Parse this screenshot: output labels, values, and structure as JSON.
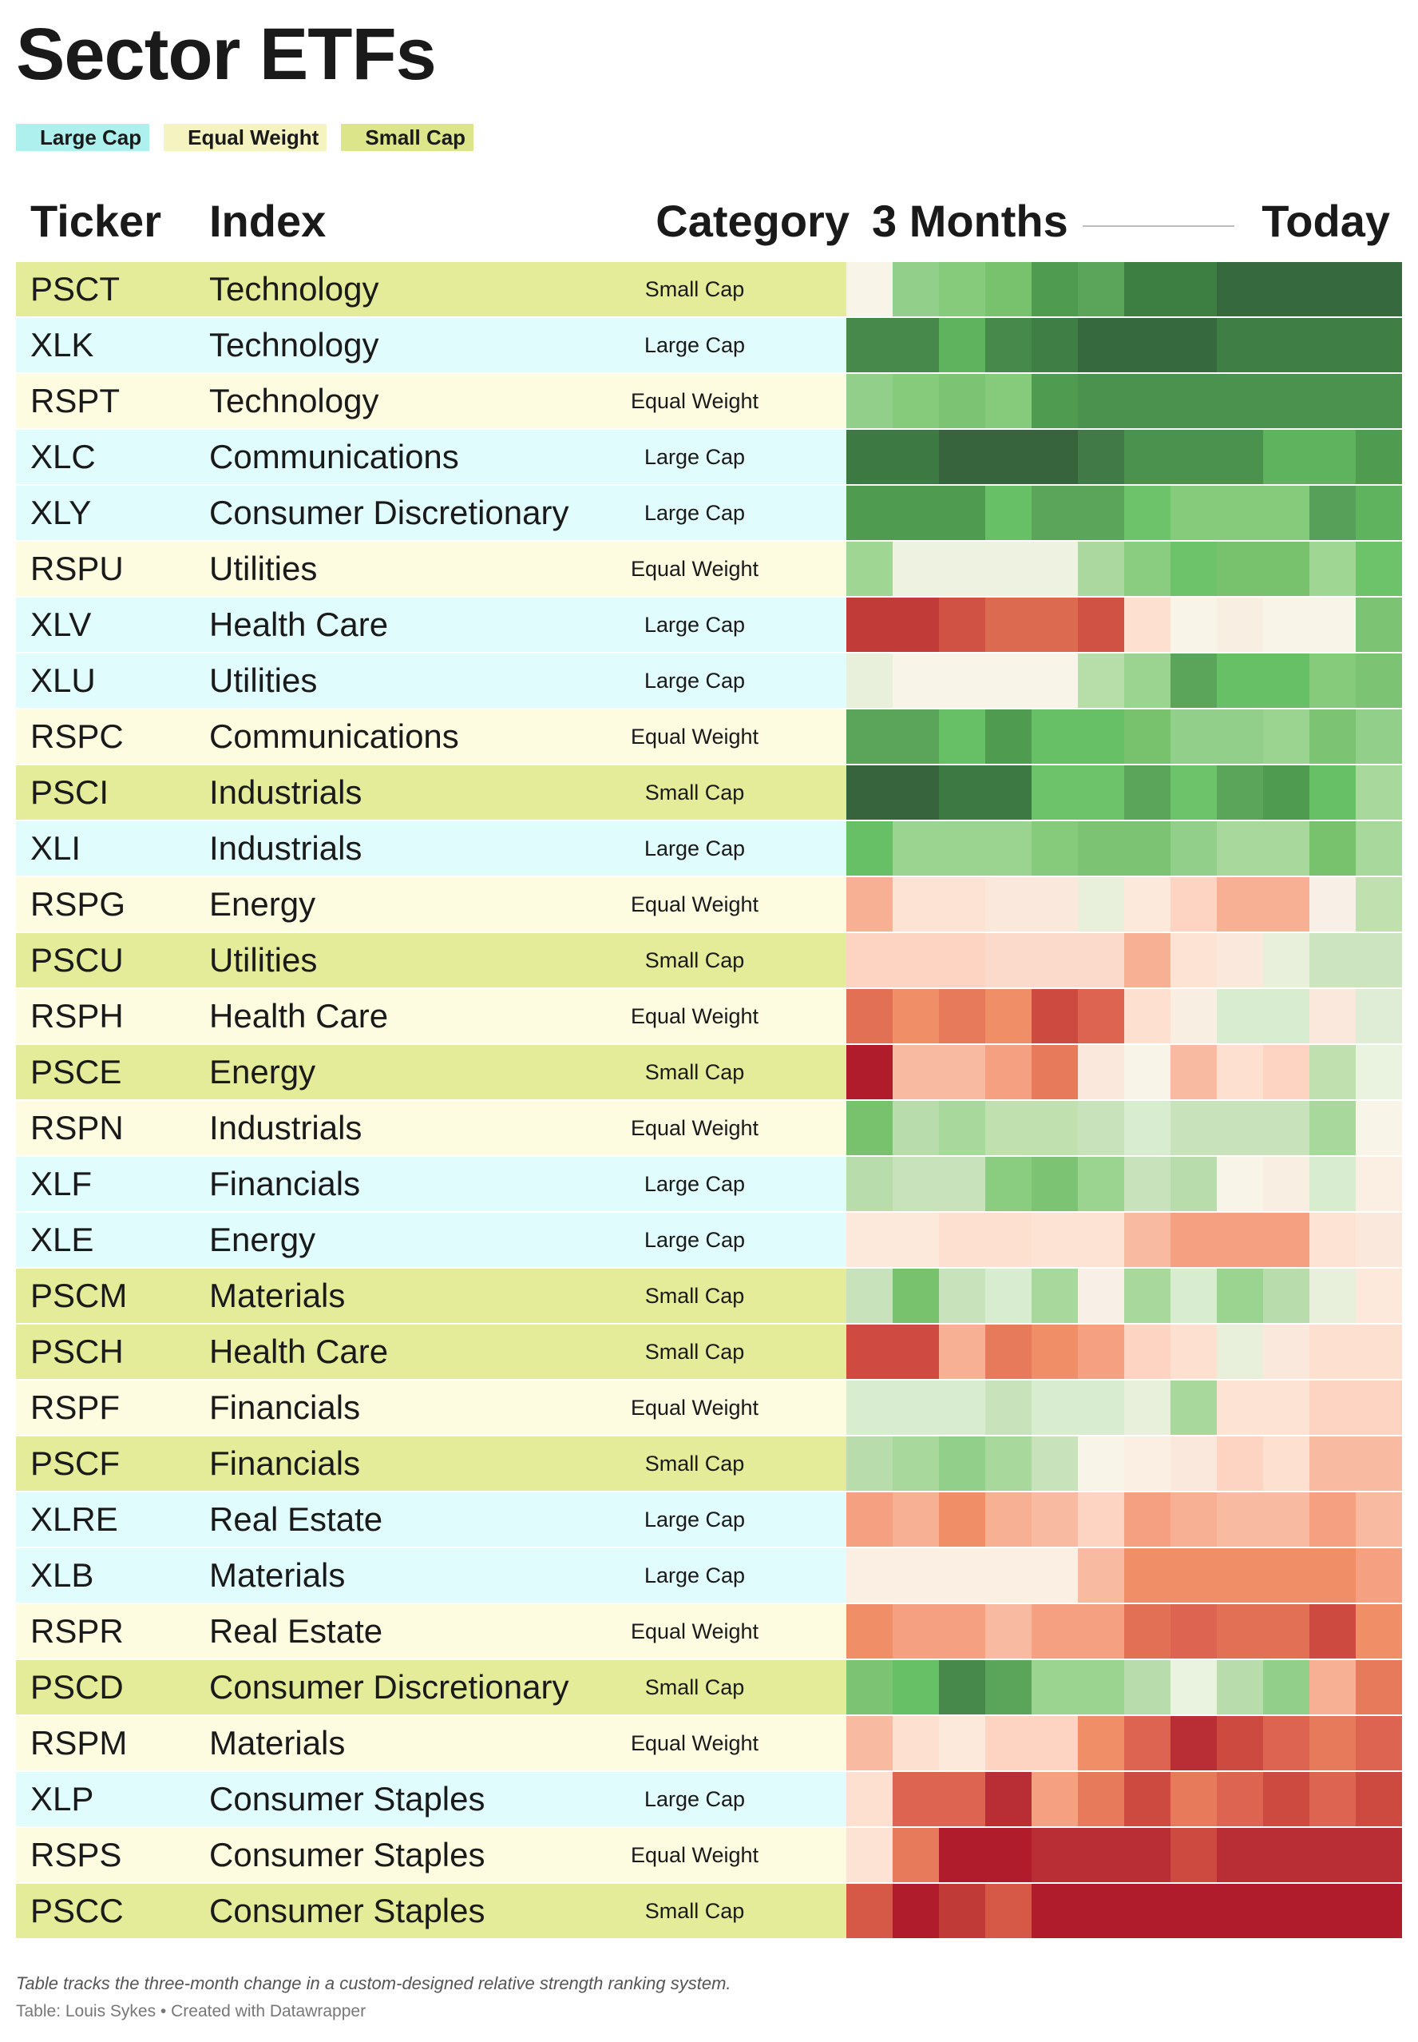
{
  "chart_data": {
    "type": "heatmap",
    "title": "Sector ETFs",
    "legend": [
      {
        "label": "Large Cap",
        "color": "#aef0ee"
      },
      {
        "label": "Equal Weight",
        "color": "#f5f4c0"
      },
      {
        "label": "Small Cap",
        "color": "#dde58a"
      }
    ],
    "row_colors": {
      "Large Cap": "#e0fcfc",
      "Equal Weight": "#fdfce1",
      "Small Cap": "#e4ec99"
    },
    "columns": [
      "Ticker",
      "Index",
      "Category",
      "3 Months",
      "Today"
    ],
    "footnote": "Table tracks the three-month change in a custom-designed relative strength ranking system.",
    "source": "Table: Louis Sykes • Created with Datawrapper",
    "rows": [
      {
        "ticker": "PSCT",
        "index": "Technology",
        "category": "Small Cap",
        "cells": [
          "#f8f5e8",
          "#92cf8a",
          "#86ca7c",
          "#78c26e",
          "#4f9c51",
          "#5aa55a",
          "#3d7f43",
          "#3d7f43",
          "#36693d",
          "#36693d",
          "#36693d",
          "#36693d"
        ]
      },
      {
        "ticker": "XLK",
        "index": "Technology",
        "category": "Large Cap",
        "cells": [
          "#46894a",
          "#46894a",
          "#5fb35f",
          "#46894a",
          "#3f7f45",
          "#37693e",
          "#37693e",
          "#37693e",
          "#3f7f45",
          "#3f7f45",
          "#3f7f45",
          "#3f7f45"
        ]
      },
      {
        "ticker": "RSPT",
        "index": "Technology",
        "category": "Equal Weight",
        "cells": [
          "#92cf8a",
          "#86ca7c",
          "#7cc473",
          "#86ca7c",
          "#4f9c51",
          "#4a924d",
          "#4a924d",
          "#4a924d",
          "#4a924d",
          "#4a924d",
          "#4a924d",
          "#4a924d"
        ]
      },
      {
        "ticker": "XLC",
        "index": "Communications",
        "category": "Large Cap",
        "cells": [
          "#3d7a43",
          "#3d7a43",
          "#37643c",
          "#37643c",
          "#37643c",
          "#417a47",
          "#4a924d",
          "#4a924d",
          "#4a924d",
          "#5fb35f",
          "#5fb35f",
          "#4f9c51"
        ]
      },
      {
        "ticker": "XLY",
        "index": "Consumer Discretionary",
        "category": "Large Cap",
        "cells": [
          "#4f9c51",
          "#4f9c51",
          "#4f9c51",
          "#67c065",
          "#5aa55a",
          "#5aa55a",
          "#6cc36a",
          "#86ca7c",
          "#86ca7c",
          "#86ca7c",
          "#56a05a",
          "#5fb35f"
        ]
      },
      {
        "ticker": "RSPU",
        "index": "Utilities",
        "category": "Equal Weight",
        "cells": [
          "#a0d694",
          "#eef2e0",
          "#eef2e0",
          "#eef2e0",
          "#eef2e0",
          "#aad89e",
          "#8acc80",
          "#6cc36a",
          "#78c26e",
          "#78c26e",
          "#a0d694",
          "#6cc36a"
        ]
      },
      {
        "ticker": "XLV",
        "index": "Health Care",
        "category": "Large Cap",
        "cells": [
          "#c13c38",
          "#c13c38",
          "#cf5244",
          "#dc6a50",
          "#dc6a50",
          "#cf5244",
          "#fde0d0",
          "#f8f5e8",
          "#f8eee2",
          "#f8f5e8",
          "#f8f5e8",
          "#7cc473"
        ]
      },
      {
        "ticker": "XLU",
        "index": "Utilities",
        "category": "Large Cap",
        "cells": [
          "#e8f0dc",
          "#f8f5e8",
          "#f8f5e8",
          "#f8f5e8",
          "#f8f5e8",
          "#b7dda9",
          "#9bd391",
          "#5aa55a",
          "#67c065",
          "#67c065",
          "#86ca7c",
          "#7cc473"
        ]
      },
      {
        "ticker": "RSPC",
        "index": "Communications",
        "category": "Equal Weight",
        "cells": [
          "#5aa55a",
          "#5aa55a",
          "#67c065",
          "#4f9c51",
          "#67c065",
          "#67c065",
          "#78c26e",
          "#92cf8a",
          "#92cf8a",
          "#9bd391",
          "#7cc473",
          "#92cf8a"
        ]
      },
      {
        "ticker": "PSCI",
        "index": "Industrials",
        "category": "Small Cap",
        "cells": [
          "#37643c",
          "#37643c",
          "#3d7a43",
          "#3d7a43",
          "#6cc36a",
          "#6cc36a",
          "#5aa55a",
          "#6cc36a",
          "#5aa55a",
          "#4f9c51",
          "#67c065",
          "#a8d89c"
        ]
      },
      {
        "ticker": "XLI",
        "index": "Industrials",
        "category": "Large Cap",
        "cells": [
          "#67c065",
          "#9bd391",
          "#9bd391",
          "#9bd391",
          "#86ca7c",
          "#7cc473",
          "#7cc473",
          "#92cf8a",
          "#a8d89c",
          "#a8d89c",
          "#78c26e",
          "#a8d89c"
        ]
      },
      {
        "ticker": "RSPG",
        "index": "Energy",
        "category": "Equal Weight",
        "cells": [
          "#f8b095",
          "#fde3d3",
          "#fde3d3",
          "#fbe8dc",
          "#fbe8dc",
          "#e8f0dc",
          "#fde8dc",
          "#fdd3c2",
          "#f8b095",
          "#f8b095",
          "#f8f0e6",
          "#c0e0b0"
        ]
      },
      {
        "ticker": "PSCU",
        "index": "Utilities",
        "category": "Small Cap",
        "cells": [
          "#fdd3c2",
          "#fdd3c2",
          "#fdd3c2",
          "#fbdacb",
          "#fbdacb",
          "#fbdacb",
          "#f8b095",
          "#fde3d3",
          "#fbe8dc",
          "#e8f0dc",
          "#cde4c0",
          "#cde4c0"
        ]
      },
      {
        "ticker": "RSPH",
        "index": "Health Care",
        "category": "Equal Weight",
        "cells": [
          "#e27055",
          "#f08e68",
          "#e67a5a",
          "#f08e68",
          "#cc4a40",
          "#dc6450",
          "#fde0d0",
          "#f8eee2",
          "#d8ecd0",
          "#d8ecd0",
          "#fbe8dc",
          "#e0edd6"
        ]
      },
      {
        "ticker": "PSCE",
        "index": "Energy",
        "category": "Small Cap",
        "cells": [
          "#b01c2c",
          "#f8bba2",
          "#f8bba2",
          "#f5a080",
          "#e67a5a",
          "#fbe8dc",
          "#f8f5e8",
          "#f8bba2",
          "#fde0d0",
          "#fdd3c2",
          "#c0e0b0",
          "#eaf2e0"
        ]
      },
      {
        "ticker": "RSPN",
        "index": "Industrials",
        "category": "Equal Weight",
        "cells": [
          "#78c26e",
          "#b8dcac",
          "#a8d89c",
          "#c0e0b0",
          "#c0e0b0",
          "#c8e2bc",
          "#d8ecd0",
          "#c8e2bc",
          "#c8e2bc",
          "#c8e2bc",
          "#a8d89c",
          "#f8f5e8"
        ]
      },
      {
        "ticker": "XLF",
        "index": "Financials",
        "category": "Large Cap",
        "cells": [
          "#b8dcac",
          "#c8e2bc",
          "#c8e2bc",
          "#8acc80",
          "#7cc473",
          "#9bd391",
          "#c8e2bc",
          "#b8dcac",
          "#f8f5e8",
          "#f8eee2",
          "#d8ecd0",
          "#fbeee2"
        ]
      },
      {
        "ticker": "XLE",
        "index": "Energy",
        "category": "Large Cap",
        "cells": [
          "#fde8dc",
          "#fde8dc",
          "#fde0d0",
          "#fde0d0",
          "#fde3d3",
          "#fde3d3",
          "#f8bba2",
          "#f5a080",
          "#f5a080",
          "#f5a080",
          "#fde3d3",
          "#fbe8dc"
        ]
      },
      {
        "ticker": "PSCM",
        "index": "Materials",
        "category": "Small Cap",
        "cells": [
          "#c8e2bc",
          "#78c26e",
          "#c8e2bc",
          "#d8ecd0",
          "#a8d89c",
          "#f8f0e6",
          "#a8d89c",
          "#d8ecd0",
          "#9bd391",
          "#b8dcac",
          "#e8f0dc",
          "#fde8dc"
        ]
      },
      {
        "ticker": "PSCH",
        "index": "Health Care",
        "category": "Small Cap",
        "cells": [
          "#cf4a40",
          "#cf4a40",
          "#f8b095",
          "#e67a5a",
          "#f08e68",
          "#f5a080",
          "#fdd3c2",
          "#fde0d0",
          "#e8f0dc",
          "#fbe8dc",
          "#fde0d0",
          "#fde0d0"
        ]
      },
      {
        "ticker": "RSPF",
        "index": "Financials",
        "category": "Equal Weight",
        "cells": [
          "#d8ecd0",
          "#d8ecd0",
          "#d8ecd0",
          "#c8e2bc",
          "#d8ecd0",
          "#d8ecd0",
          "#e8f0dc",
          "#a8d89c",
          "#fde3d3",
          "#fde3d3",
          "#fdd3c2",
          "#fdd3c2"
        ]
      },
      {
        "ticker": "PSCF",
        "index": "Financials",
        "category": "Small Cap",
        "cells": [
          "#b8dcac",
          "#a8d89c",
          "#92cf8a",
          "#a8d89c",
          "#c8e2bc",
          "#f8f5e8",
          "#fbeee2",
          "#fbe8dc",
          "#fdd3c2",
          "#fde0d0",
          "#f8bba2",
          "#f8bba2"
        ]
      },
      {
        "ticker": "XLRE",
        "index": "Real Estate",
        "category": "Large Cap",
        "cells": [
          "#f5a080",
          "#f8b095",
          "#f08e68",
          "#f8b095",
          "#f8bba2",
          "#fdd3c2",
          "#f5a080",
          "#f8b095",
          "#f8bba2",
          "#f8bba2",
          "#f5a080",
          "#f8bba2"
        ]
      },
      {
        "ticker": "XLB",
        "index": "Materials",
        "category": "Large Cap",
        "cells": [
          "#fbeee2",
          "#fbeee2",
          "#fbeee2",
          "#fbeee2",
          "#fbeee2",
          "#f8bba2",
          "#f08e68",
          "#f08e68",
          "#f08e68",
          "#f08e68",
          "#f08e68",
          "#f5a080"
        ]
      },
      {
        "ticker": "RSPR",
        "index": "Real Estate",
        "category": "Equal Weight",
        "cells": [
          "#f08e68",
          "#f5a080",
          "#f5a080",
          "#f8bba2",
          "#f5a080",
          "#f5a080",
          "#e27055",
          "#dc6450",
          "#e27055",
          "#e27055",
          "#cc4a40",
          "#f08e68"
        ]
      },
      {
        "ticker": "PSCD",
        "index": "Consumer Discretionary",
        "category": "Small Cap",
        "cells": [
          "#7cc473",
          "#67c065",
          "#46894a",
          "#5aa55a",
          "#9bd391",
          "#9bd391",
          "#b8dcac",
          "#eaf2e0",
          "#b8dcac",
          "#92cf8a",
          "#f8b095",
          "#e67a5a"
        ]
      },
      {
        "ticker": "RSPM",
        "index": "Materials",
        "category": "Equal Weight",
        "cells": [
          "#f8bba2",
          "#fde0d0",
          "#fde8dc",
          "#fdd3c2",
          "#fdd3c2",
          "#f08e68",
          "#dc6450",
          "#b82e34",
          "#cc4a40",
          "#dc6450",
          "#e67a5a",
          "#dc6450"
        ]
      },
      {
        "ticker": "XLP",
        "index": "Consumer Staples",
        "category": "Large Cap",
        "cells": [
          "#fde0d0",
          "#dc6450",
          "#dc6450",
          "#b82e34",
          "#f5a080",
          "#e67a5a",
          "#cc4a40",
          "#e67a5a",
          "#dc6450",
          "#cc4a40",
          "#dc6450",
          "#cc4a40"
        ]
      },
      {
        "ticker": "RSPS",
        "index": "Consumer Staples",
        "category": "Equal Weight",
        "cells": [
          "#fde3d3",
          "#e67a5a",
          "#b01c2c",
          "#b01c2c",
          "#b82e34",
          "#b82e34",
          "#b82e34",
          "#cc4a40",
          "#b82e34",
          "#b82e34",
          "#b82e34",
          "#b82e34"
        ]
      },
      {
        "ticker": "PSCC",
        "index": "Consumer Staples",
        "category": "Small Cap",
        "cells": [
          "#d65846",
          "#b01c2c",
          "#c03a38",
          "#d65846",
          "#b01c2c",
          "#b01c2c",
          "#b01c2c",
          "#b01c2c",
          "#b01c2c",
          "#b01c2c",
          "#b01c2c",
          "#b01c2c"
        ]
      }
    ]
  }
}
